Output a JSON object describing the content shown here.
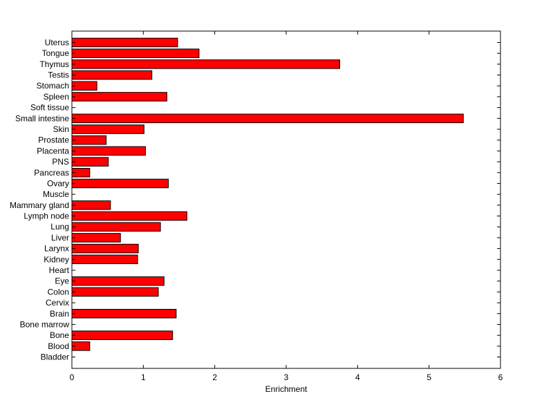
{
  "chart_data": {
    "type": "bar",
    "orientation": "horizontal",
    "xlabel": "Enrichment",
    "ylabel": "",
    "title": "",
    "xlim": [
      0,
      6
    ],
    "xticks": [
      "0",
      "1",
      "2",
      "3",
      "4",
      "5",
      "6"
    ],
    "grid": false,
    "legend": "none",
    "bar_color": "#ff0000",
    "bar_edge_color": "#000000",
    "categories": [
      "Bladder",
      "Blood",
      "Bone",
      "Bone marrow",
      "Brain",
      "Cervix",
      "Colon",
      "Eye",
      "Heart",
      "Kidney",
      "Larynx",
      "Liver",
      "Lung",
      "Lymph node",
      "Mammary gland",
      "Muscle",
      "Ovary",
      "Pancreas",
      "PNS",
      "Placenta",
      "Prostate",
      "Skin",
      "Small intestine",
      "Soft tissue",
      "Spleen",
      "Stomach",
      "Testis",
      "Thymus",
      "Tongue",
      "Uterus"
    ],
    "values": [
      0,
      0.25,
      1.41,
      0,
      1.46,
      0,
      1.21,
      1.29,
      0,
      0.92,
      0.93,
      0.68,
      1.24,
      1.61,
      0.54,
      0,
      1.35,
      0.25,
      0.51,
      1.03,
      0.48,
      1.01,
      5.48,
      0,
      1.33,
      0.35,
      1.12,
      3.75,
      1.78,
      1.48
    ]
  }
}
